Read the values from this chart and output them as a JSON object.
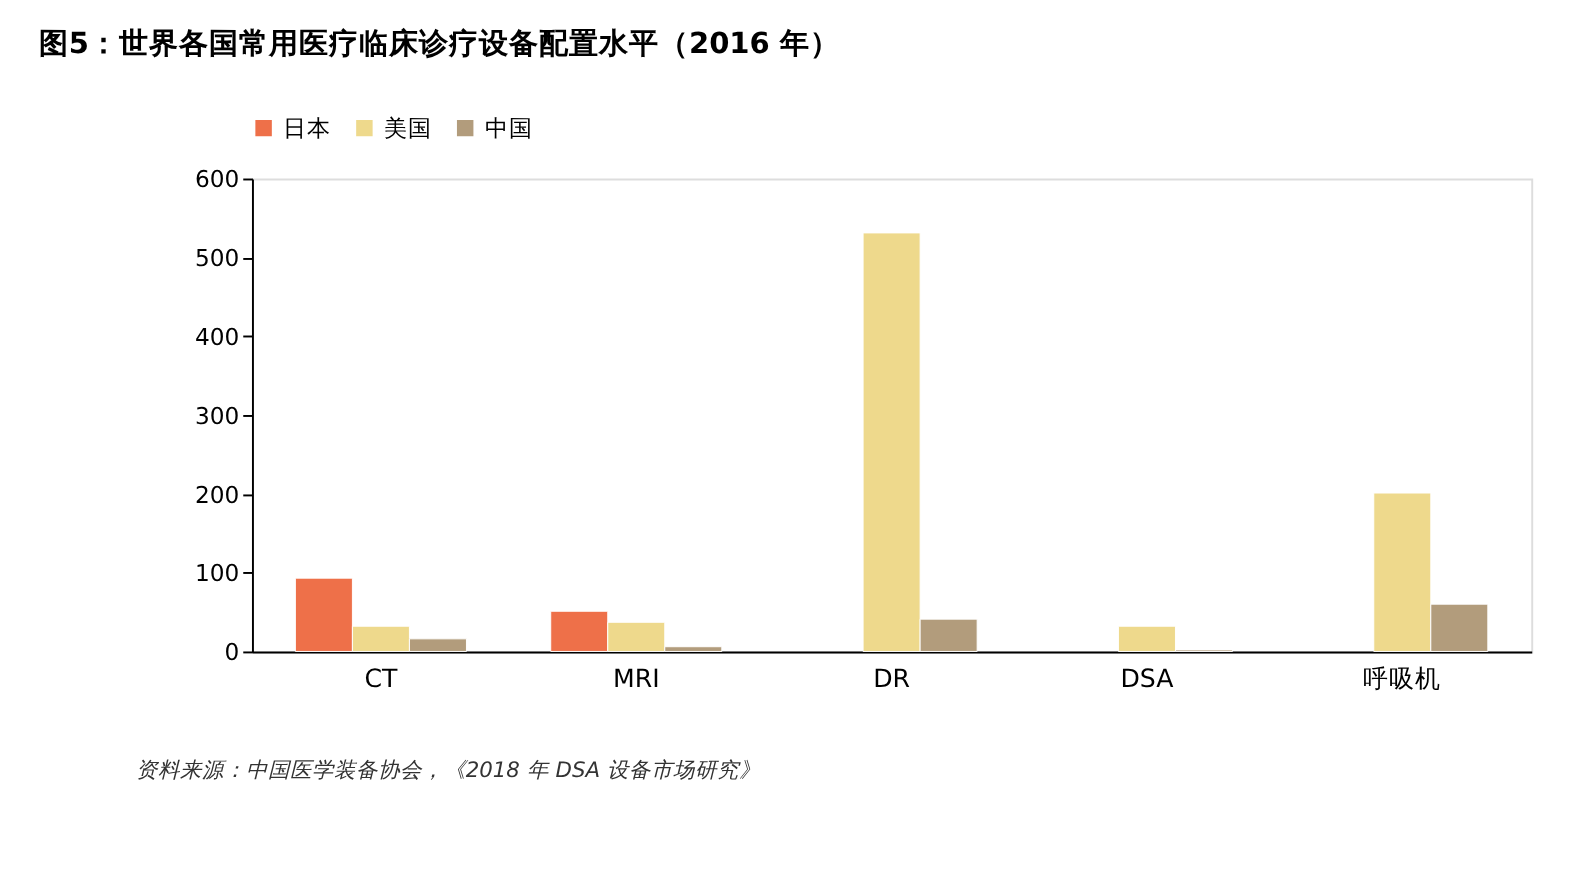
{
  "chart_data": {
    "type": "bar",
    "title": "图5：世界各国常用医疗临床诊疗设备配置水平（2016 年）",
    "categories": [
      "CT",
      "MRI",
      "DR",
      "DSA",
      "呼吸机"
    ],
    "series": [
      {
        "name": "日本",
        "color": "#ee7049",
        "values": [
          93,
          51,
          null,
          null,
          null
        ]
      },
      {
        "name": "美国",
        "color": "#eed98c",
        "values": [
          32,
          37,
          531,
          32,
          201
        ]
      },
      {
        "name": "中国",
        "color": "#b29c7c",
        "values": [
          16,
          6,
          41,
          2,
          60
        ]
      }
    ],
    "ylim": [
      0,
      600
    ],
    "yticks": [
      0,
      100,
      200,
      300,
      400,
      500,
      600
    ],
    "grid": false,
    "legend": "top",
    "annotations": [
      "资料来源：中国医学装备协会，《2018 年 DSA 设备市场研究》"
    ]
  }
}
